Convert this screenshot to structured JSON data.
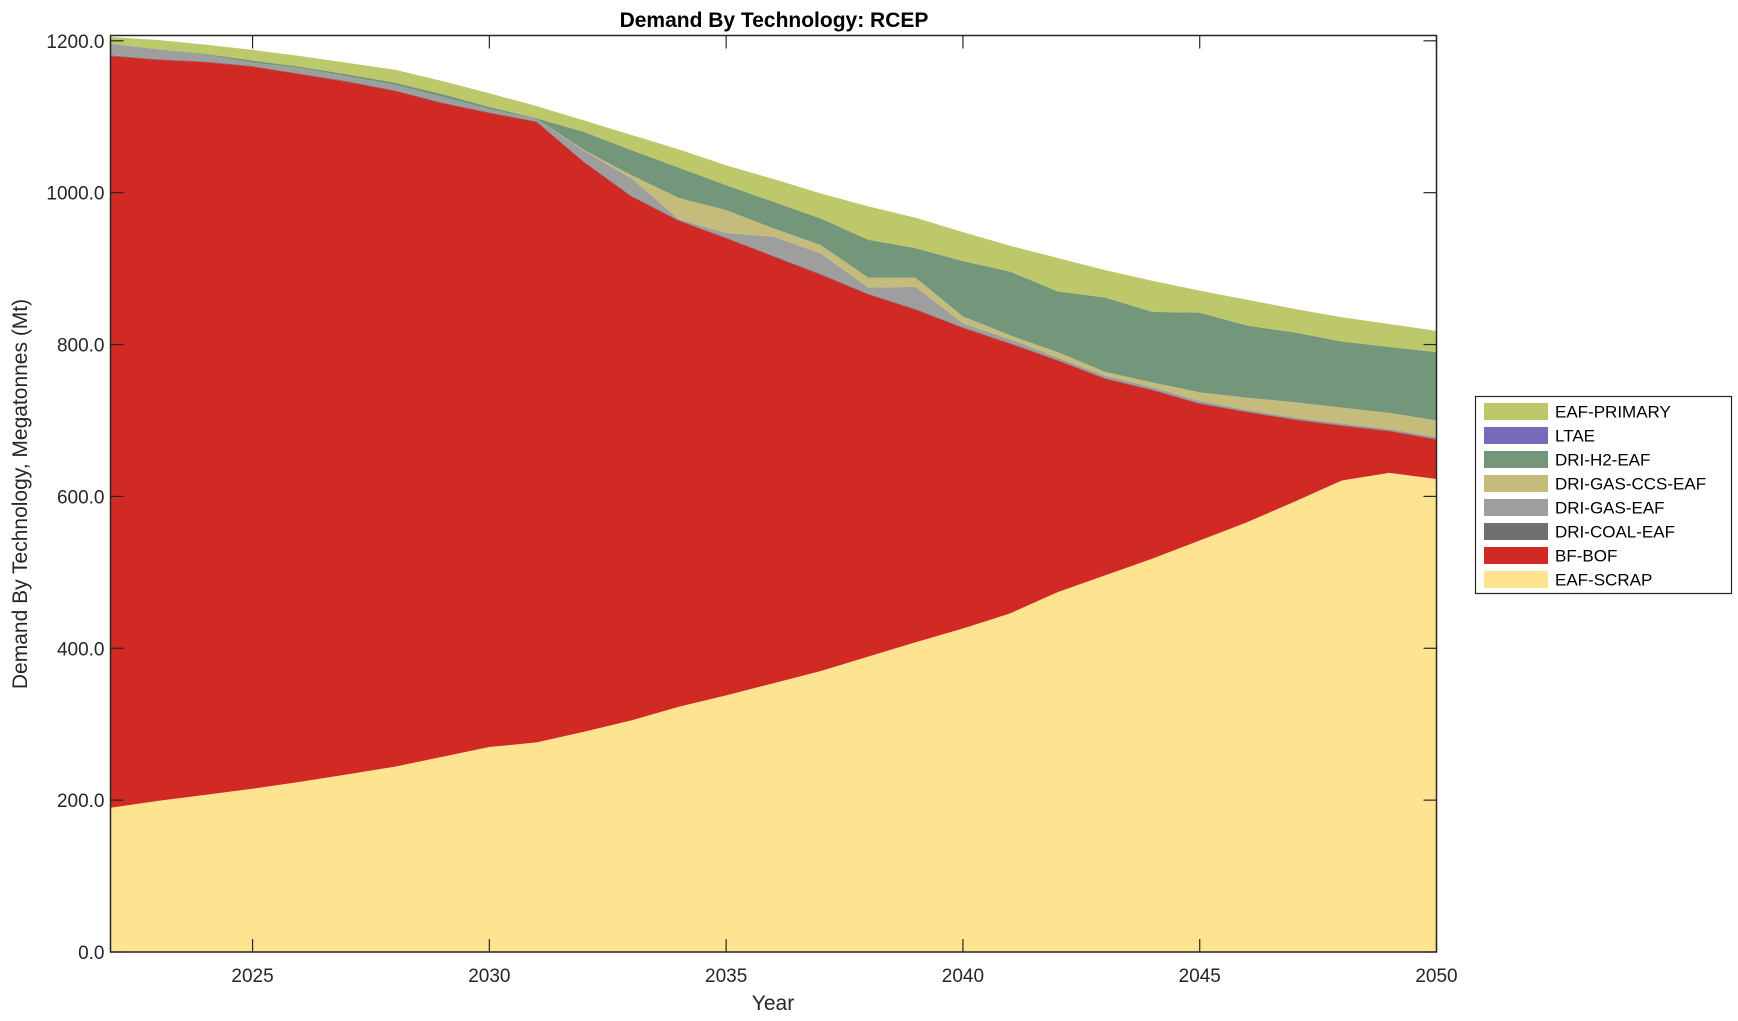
{
  "chart_data": {
    "type": "area",
    "stacked": true,
    "title": "Demand By Technology: RCEP",
    "xlabel": "Year",
    "ylabel": "Demand By Technology, Megatonnes (Mt)",
    "xlim": [
      2022,
      2050
    ],
    "ylim": [
      0,
      1207
    ],
    "x_ticks": [
      2025,
      2030,
      2035,
      2040,
      2045,
      2050
    ],
    "x_tick_labels": [
      "2025",
      "2030",
      "2035",
      "2040",
      "2045",
      "2050"
    ],
    "y_ticks": [
      0,
      200,
      400,
      600,
      800,
      1000,
      1200
    ],
    "y_tick_labels": [
      "0.0",
      "200.0",
      "400.0",
      "600.0",
      "800.0",
      "1000.0",
      "1200.0"
    ],
    "grid": false,
    "legend_position": "right",
    "x": [
      2022,
      2023,
      2024,
      2025,
      2026,
      2027,
      2028,
      2029,
      2030,
      2031,
      2032,
      2033,
      2034,
      2035,
      2036,
      2037,
      2038,
      2039,
      2040,
      2041,
      2042,
      2043,
      2044,
      2045,
      2046,
      2047,
      2048,
      2049,
      2050
    ],
    "series": [
      {
        "name": "EAF-SCRAP",
        "color": "#FEE391",
        "values": [
          190,
          199,
          207,
          215,
          224,
          234,
          244,
          257,
          270,
          276,
          290,
          305,
          323,
          338,
          354,
          370,
          389,
          408,
          426,
          446,
          474,
          496,
          518,
          542,
          566,
          593,
          621,
          631,
          623
        ]
      },
      {
        "name": "BF-BOF",
        "color": "#D12A24",
        "values": [
          990,
          976,
          965,
          951,
          932,
          912,
          890,
          861,
          835,
          817,
          750,
          690,
          640,
          602,
          562,
          522,
          477,
          438,
          396,
          355,
          305,
          259,
          222,
          180,
          145,
          108,
          72,
          55,
          52
        ]
      },
      {
        "name": "DRI-COAL-EAF",
        "color": "#707070",
        "values": [
          1,
          1,
          1,
          1,
          1,
          1,
          1,
          1,
          1,
          1,
          1,
          1,
          1,
          1,
          1,
          1,
          1,
          1,
          1,
          1,
          1,
          1,
          1,
          1,
          1,
          1,
          1,
          1,
          1
        ]
      },
      {
        "name": "DRI-GAS-EAF",
        "color": "#9E9E9E",
        "values": [
          15,
          13,
          9,
          4,
          7,
          6,
          7,
          7,
          4,
          3,
          14,
          23,
          1,
          6,
          25,
          27,
          8,
          29,
          5,
          5,
          3,
          3,
          3,
          3,
          2,
          2,
          2,
          2,
          2
        ]
      },
      {
        "name": "DRI-GAS-CCS-EAF",
        "color": "#C5BC7C",
        "values": [
          0,
          0,
          0,
          0,
          0,
          0,
          0,
          0,
          0,
          0,
          1,
          4,
          28,
          30,
          11,
          11,
          13,
          12,
          9,
          5,
          7,
          5,
          6,
          11,
          16,
          20,
          21,
          21,
          22
        ]
      },
      {
        "name": "DRI-H2-EAF",
        "color": "#74977C",
        "values": [
          0,
          0,
          1,
          3,
          2,
          3,
          3,
          4,
          3,
          1,
          24,
          33,
          40,
          33,
          35,
          35,
          50,
          39,
          73,
          84,
          80,
          98,
          93,
          105,
          95,
          92,
          87,
          87,
          90
        ]
      },
      {
        "name": "LTAE",
        "color": "#766BB8",
        "values": [
          0,
          0,
          0,
          0,
          0,
          0,
          0,
          0,
          0,
          0,
          0,
          0,
          0,
          0,
          0,
          0,
          0,
          0,
          0,
          0,
          0,
          0,
          0,
          0,
          0,
          0,
          0,
          0,
          0
        ]
      },
      {
        "name": "EAF-PRIMARY",
        "color": "#BDC86A",
        "values": [
          9,
          12,
          12,
          14,
          14,
          15,
          17,
          17,
          18,
          16,
          15,
          20,
          24,
          26,
          30,
          33,
          44,
          40,
          38,
          34,
          44,
          36,
          41,
          29,
          34,
          31,
          32,
          30,
          28
        ]
      }
    ],
    "legend_order": [
      "EAF-PRIMARY",
      "LTAE",
      "DRI-H2-EAF",
      "DRI-GAS-CCS-EAF",
      "DRI-GAS-EAF",
      "DRI-COAL-EAF",
      "BF-BOF",
      "EAF-SCRAP"
    ]
  }
}
